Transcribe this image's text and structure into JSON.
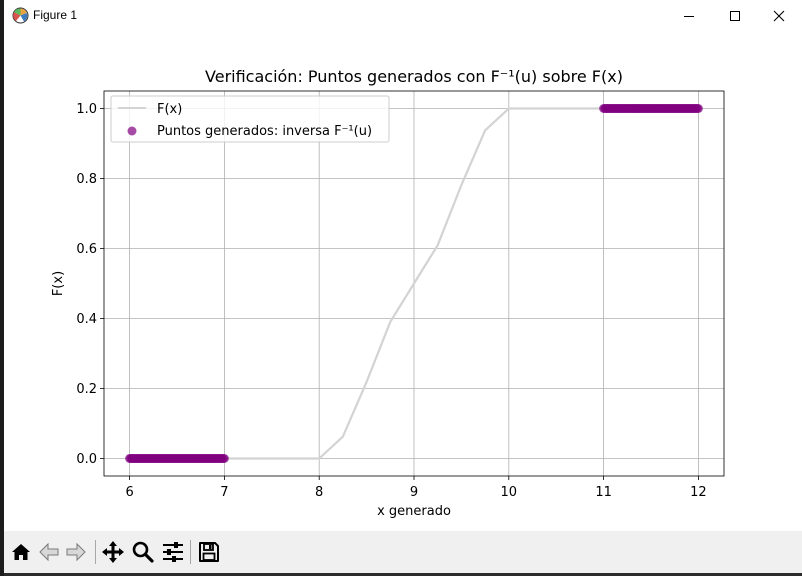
{
  "window": {
    "title": "Figure 1",
    "icon": "matplotlib-icon",
    "controls": [
      "minimize-icon",
      "maximize-icon",
      "close-icon"
    ]
  },
  "toolbar": {
    "buttons": [
      {
        "name": "home-button",
        "icon": "home-icon"
      },
      {
        "name": "back-button",
        "icon": "arrow-left-icon"
      },
      {
        "name": "forward-button",
        "icon": "arrow-right-icon"
      },
      {
        "name": "pan-button",
        "icon": "move-icon"
      },
      {
        "name": "zoom-button",
        "icon": "magnifier-icon"
      },
      {
        "name": "configure-subplots-button",
        "icon": "sliders-icon"
      },
      {
        "name": "save-button",
        "icon": "floppy-disk-icon"
      }
    ]
  },
  "chart_data": {
    "type": "scatter",
    "title": "Verificación: Puntos generados con F⁻¹(u) sobre F(x)",
    "xlabel": "x generado",
    "ylabel": "F(x)",
    "xlim": [
      5.73,
      12.27
    ],
    "ylim": [
      -0.05,
      1.05
    ],
    "xticks": [
      6,
      7,
      8,
      9,
      10,
      11,
      12
    ],
    "yticks": [
      0.0,
      0.2,
      0.4,
      0.6,
      0.8,
      1.0
    ],
    "xtick_labels": [
      "6",
      "7",
      "8",
      "9",
      "10",
      "11",
      "12"
    ],
    "ytick_labels": [
      "0.0",
      "0.2",
      "0.4",
      "0.6",
      "0.8",
      "1.0"
    ],
    "grid": true,
    "legend_position": "upper-left",
    "series": [
      {
        "name": "F(x)",
        "kind": "line",
        "color": "#d3d3d3",
        "x": [
          6,
          7,
          8,
          8.25,
          8.5,
          8.75,
          9,
          9.25,
          9.5,
          9.75,
          10,
          11,
          12
        ],
        "y": [
          0,
          0,
          0,
          0.0625,
          0.2188,
          0.3906,
          0.5,
          0.6094,
          0.7813,
          0.9375,
          1,
          1,
          1
        ]
      },
      {
        "name": "Puntos generados: inversa F⁻¹(u)",
        "kind": "scatter",
        "color": "#800080",
        "clusters": [
          {
            "x_range": [
              6,
              7
            ],
            "y": 0
          },
          {
            "x_range": [
              11,
              12
            ],
            "y": 1
          }
        ]
      }
    ]
  }
}
